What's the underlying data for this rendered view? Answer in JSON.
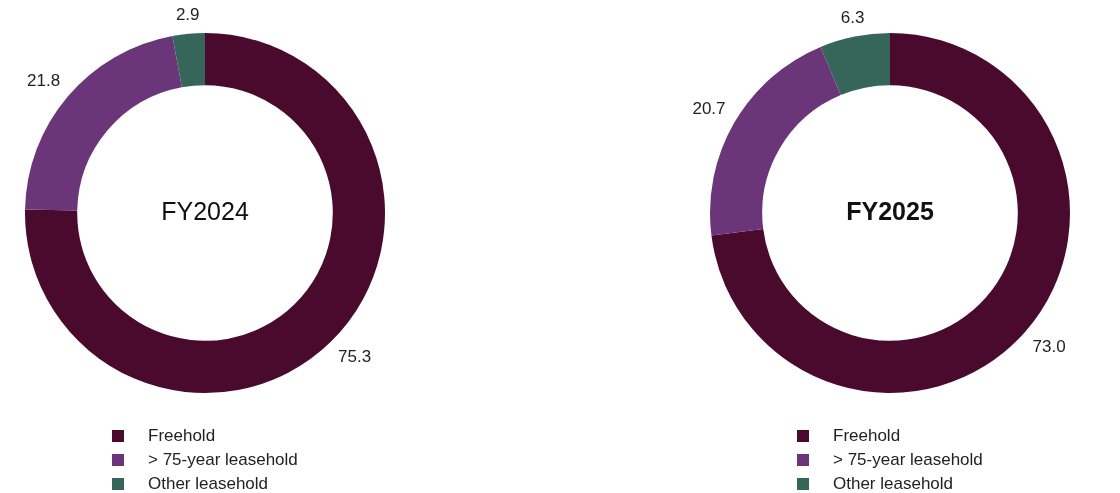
{
  "chart_data": [
    {
      "type": "donut",
      "title": "FY2024",
      "categories": [
        "Freehold",
        "> 75-year leasehold",
        "Other leasehold"
      ],
      "values": [
        75.3,
        21.8,
        2.9
      ],
      "value_labels": [
        "75.3",
        "21.8",
        "2.9"
      ],
      "colors": [
        "#4a0a2e",
        "#6b3579",
        "#36655a"
      ],
      "legend": "bottom"
    },
    {
      "type": "donut",
      "title": "FY2025",
      "categories": [
        "Freehold",
        "> 75-year leasehold",
        "Other leasehold"
      ],
      "values": [
        73.0,
        20.7,
        6.3
      ],
      "value_labels": [
        "73.0",
        "20.7",
        "6.3"
      ],
      "colors": [
        "#4a0a2e",
        "#6b3579",
        "#36655a"
      ],
      "legend": "bottom"
    }
  ]
}
